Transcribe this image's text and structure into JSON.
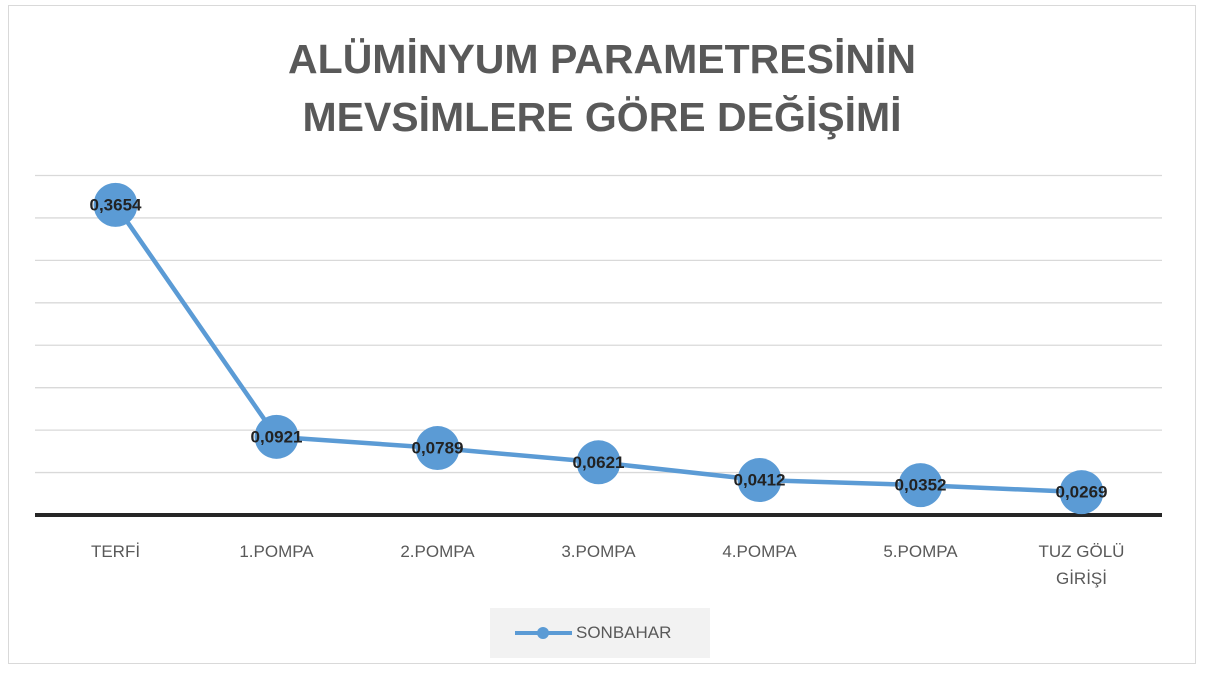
{
  "chart_data": {
    "type": "line",
    "title": "ALÜMİNYUM PARAMETRESİNİN MEVSİMLERE GÖRE DEĞİŞİMİ",
    "categories": [
      "TERFİ",
      "1.POMPA",
      "2.POMPA",
      "3.POMPA",
      "4.POMPA",
      "5.POMPA",
      "TUZ GÖLÜ GİRİŞİ"
    ],
    "series": [
      {
        "name": "SONBAHAR",
        "color": "#5b9bd5",
        "values": [
          0.3654,
          0.0921,
          0.0789,
          0.0621,
          0.0412,
          0.0352,
          0.0269
        ],
        "value_labels": [
          "0,3654",
          "0,0921",
          "0,0789",
          "0,0621",
          "0,0412",
          "0,0352",
          "0,0269"
        ]
      }
    ],
    "ylim": [
      0,
      0.4
    ],
    "yticks": [
      0,
      0.05,
      0.1,
      0.15,
      0.2,
      0.25,
      0.3,
      0.35,
      0.4
    ],
    "grid": true,
    "legend": "bottom"
  }
}
